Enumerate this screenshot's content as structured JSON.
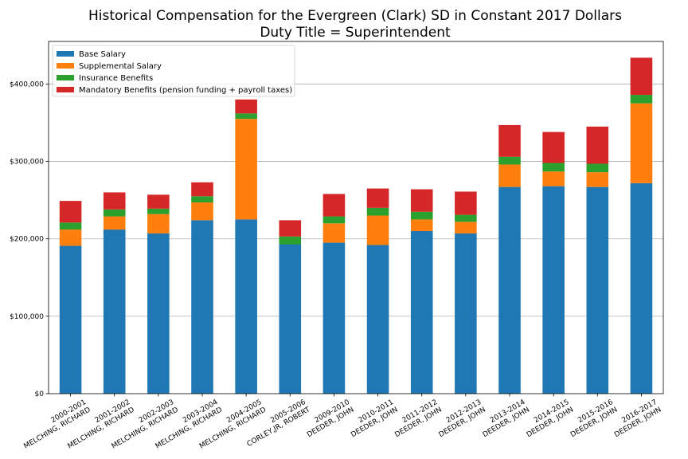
{
  "chart_data": {
    "type": "bar",
    "stacked": true,
    "title": "Historical Compensation for the Evergreen (Clark) SD in Constant 2017 Dollars",
    "subtitle": "Duty Title = Superintendent",
    "xlabel": "",
    "ylabel": "",
    "ylim": [
      0,
      455000
    ],
    "yticks": [
      0,
      100000,
      200000,
      300000,
      400000
    ],
    "ytick_labels": [
      "$0",
      "$100,000",
      "$200,000",
      "$300,000",
      "$400,000"
    ],
    "grid": "horizontal",
    "legend_position": "top-left",
    "categories": [
      [
        "2000-2001",
        "MELCHING, RICHARD"
      ],
      [
        "2001-2002",
        "MELCHING, RICHARD"
      ],
      [
        "2002-2003",
        "MELCHING, RICHARD"
      ],
      [
        "2003-2004",
        "MELCHING, RICHARD"
      ],
      [
        "2004-2005",
        "MELCHING, RICHARD"
      ],
      [
        "2005-2006",
        "CORLEY,JR, ROBERT"
      ],
      [
        "2009-2010",
        "DEEDER, JOHN"
      ],
      [
        "2010-2011",
        "DEEDER, JOHN"
      ],
      [
        "2011-2012",
        "DEEDER, JOHN"
      ],
      [
        "2012-2013",
        "DEEDER, JOHN"
      ],
      [
        "2013-2014",
        "DEEDER, JOHN"
      ],
      [
        "2014-2015",
        "DEEDER, JOHN"
      ],
      [
        "2015-2016",
        "DEEDER, JOHN"
      ],
      [
        "2016-2017",
        "DEEDER, JOHN"
      ]
    ],
    "series": [
      {
        "name": "Base Salary",
        "color": "#1f77b4",
        "values": [
          191000,
          212000,
          207000,
          224000,
          225000,
          193000,
          195000,
          192000,
          210000,
          207000,
          267000,
          268000,
          267000,
          272000
        ]
      },
      {
        "name": "Supplemental Salary",
        "color": "#ff7f0e",
        "values": [
          21000,
          17000,
          25000,
          23000,
          130000,
          0,
          25000,
          38000,
          15000,
          15000,
          29000,
          19000,
          19000,
          103000
        ]
      },
      {
        "name": "Insurance Benefits",
        "color": "#2ca02c",
        "values": [
          9000,
          9000,
          7000,
          8000,
          7000,
          10000,
          9000,
          10000,
          10000,
          9000,
          10000,
          11000,
          11000,
          11000
        ]
      },
      {
        "name": "Mandatory Benefits (pension funding + payroll taxes)",
        "color": "#d62728",
        "values": [
          28000,
          22000,
          18000,
          18000,
          18000,
          21000,
          29000,
          25000,
          29000,
          30000,
          41000,
          40000,
          48000,
          48000
        ]
      }
    ]
  }
}
